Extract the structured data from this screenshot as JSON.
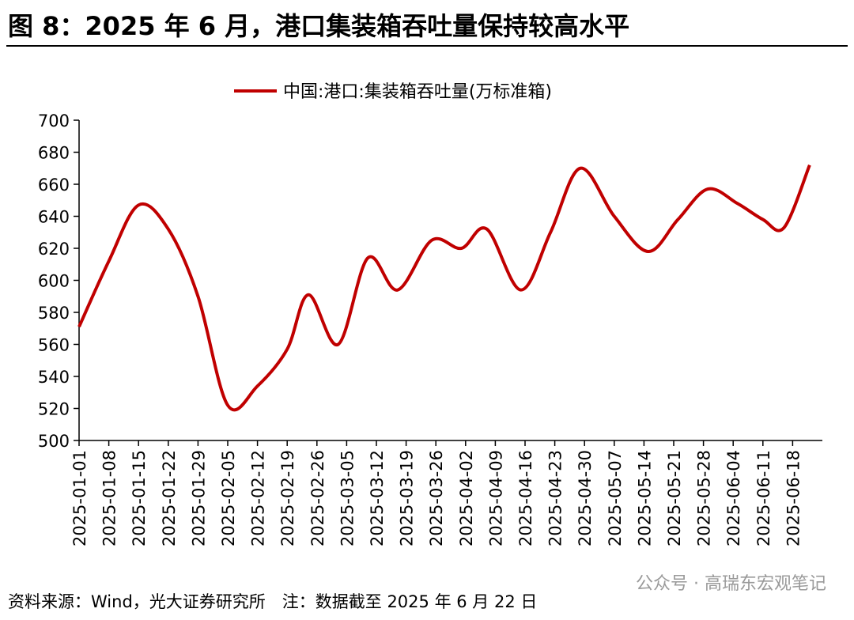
{
  "chart_data": {
    "type": "line",
    "title": "图 8：2025 年 6 月，港口集装箱吞吐量保持较高水平",
    "x": [
      "2025-01-01",
      "2025-01-08",
      "2025-01-15",
      "2025-01-22",
      "2025-01-29",
      "2025-02-05",
      "2025-02-12",
      "2025-02-19",
      "2025-02-24",
      "2025-03-03",
      "2025-03-10",
      "2025-03-17",
      "2025-03-25",
      "2025-04-01",
      "2025-04-07",
      "2025-04-15",
      "2025-04-22",
      "2025-04-29",
      "2025-05-07",
      "2025-05-15",
      "2025-05-22",
      "2025-05-29",
      "2025-06-05",
      "2025-06-11",
      "2025-06-16",
      "2025-06-22"
    ],
    "series": [
      {
        "name": "中国:港口:集装箱吞吐量(万标准箱)",
        "color": "#c00000",
        "values": [
          571,
          612,
          647,
          632,
          590,
          522,
          534,
          557,
          591,
          560,
          614,
          594,
          625,
          620,
          632,
          594,
          630,
          670,
          640,
          618,
          638,
          657,
          648,
          638,
          633,
          672
        ]
      }
    ],
    "xlim": [
      "2025-01-01",
      "2025-06-25"
    ],
    "xticks": [
      "2025-01-01",
      "2025-01-08",
      "2025-01-15",
      "2025-01-22",
      "2025-01-29",
      "2025-02-05",
      "2025-02-12",
      "2025-02-19",
      "2025-02-26",
      "2025-03-05",
      "2025-03-12",
      "2025-03-19",
      "2025-03-26",
      "2025-04-02",
      "2025-04-09",
      "2025-04-16",
      "2025-04-23",
      "2025-04-30",
      "2025-05-07",
      "2025-05-14",
      "2025-05-21",
      "2025-05-28",
      "2025-06-04",
      "2025-06-11",
      "2025-06-18"
    ],
    "ylim": [
      500,
      700
    ],
    "yticks": [
      500,
      520,
      540,
      560,
      580,
      600,
      620,
      640,
      660,
      680,
      700
    ],
    "legend": "top",
    "source": "资料来源：Wind，光大证券研究所　注：数据截至 2025 年 6 月 22 日",
    "watermark": "公众号 · 高瑞东宏观笔记"
  }
}
